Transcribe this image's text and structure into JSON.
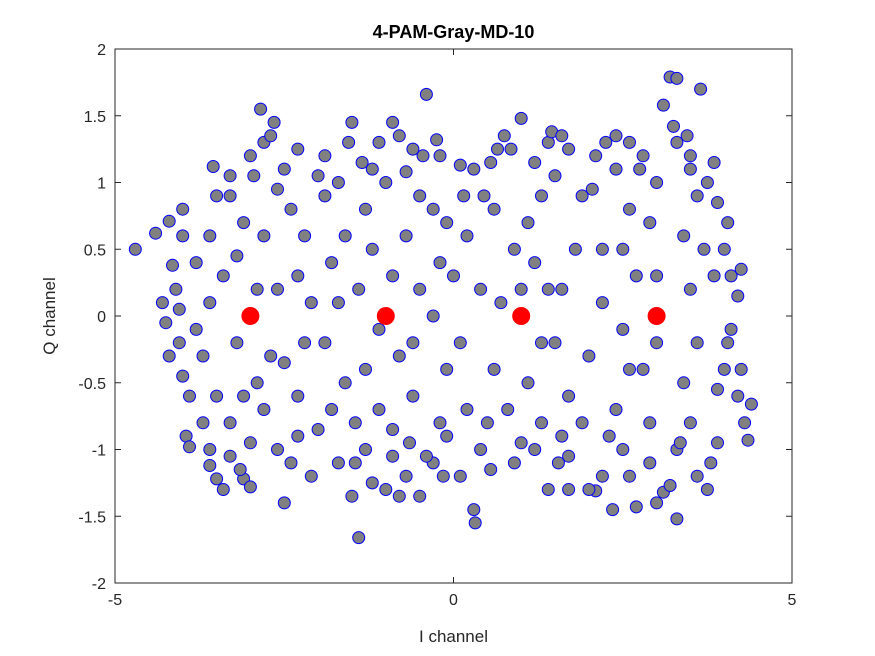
{
  "chart_data": {
    "type": "scatter",
    "title": "4-PAM-Gray-MD-10",
    "xlabel": "I channel",
    "ylabel": "Q channel",
    "xlim": [
      -5,
      5
    ],
    "ylim": [
      -2,
      2
    ],
    "xticks": [
      -5,
      0,
      5
    ],
    "xtick_labels": [
      "-5",
      "0",
      "5"
    ],
    "yticks": [
      2,
      1.5,
      1,
      0.5,
      0,
      -0.5,
      -1,
      -1.5,
      -2
    ],
    "ytick_labels": [
      "2",
      "1.5",
      "1",
      "0.5",
      "0",
      "-0.5",
      "-1",
      "-1.5",
      "-2"
    ],
    "grid": false,
    "series": [
      {
        "role": "received-samples",
        "marker": "circle",
        "face_color": "#808080",
        "edge_color": "#0000ff",
        "points": [
          [
            -4.7,
            0.5
          ],
          [
            -4.4,
            0.62
          ],
          [
            -4.2,
            0.71
          ],
          [
            -4.15,
            0.38
          ],
          [
            -4.1,
            0.2
          ],
          [
            -4.3,
            0.1
          ],
          [
            -4.25,
            -0.05
          ],
          [
            -4.05,
            -0.2
          ],
          [
            -4.2,
            -0.3
          ],
          [
            -4.0,
            -0.45
          ],
          [
            -3.9,
            -0.6
          ],
          [
            -3.95,
            -0.9
          ],
          [
            -3.9,
            -0.98
          ],
          [
            -3.6,
            -1.12
          ],
          [
            -3.5,
            -1.22
          ],
          [
            -3.1,
            -1.22
          ],
          [
            -3.0,
            -1.28
          ],
          [
            -2.5,
            -1.4
          ],
          [
            -3.0,
            -0.95
          ],
          [
            -2.9,
            -0.5
          ],
          [
            -3.5,
            -0.6
          ],
          [
            -3.7,
            -0.3
          ],
          [
            -3.4,
            0.3
          ],
          [
            -3.2,
            0.45
          ],
          [
            -3.6,
            0.6
          ],
          [
            -3.1,
            0.7
          ],
          [
            -3.5,
            0.9
          ],
          [
            -3.55,
            1.12
          ],
          [
            -3.3,
            1.05
          ],
          [
            -3.0,
            1.2
          ],
          [
            -2.8,
            1.3
          ],
          [
            -2.85,
            1.55
          ],
          [
            -2.65,
            1.45
          ],
          [
            -2.7,
            1.35
          ],
          [
            -2.5,
            1.1
          ],
          [
            -2.6,
            0.95
          ],
          [
            -2.4,
            0.8
          ],
          [
            -2.2,
            0.6
          ],
          [
            -2.3,
            0.3
          ],
          [
            -2.1,
            0.1
          ],
          [
            -2.2,
            -0.2
          ],
          [
            -2.5,
            -0.35
          ],
          [
            -2.3,
            -0.6
          ],
          [
            -2.0,
            -0.85
          ],
          [
            -2.6,
            -1.0
          ],
          [
            -2.3,
            -0.9
          ],
          [
            -1.8,
            -0.7
          ],
          [
            -1.9,
            -0.2
          ],
          [
            -1.8,
            0.4
          ],
          [
            -1.9,
            0.9
          ],
          [
            -1.5,
            1.45
          ],
          [
            -1.35,
            1.15
          ],
          [
            -1.55,
            1.3
          ],
          [
            -1.2,
            1.1
          ],
          [
            -1.0,
            1.0
          ],
          [
            -1.3,
            0.8
          ],
          [
            -1.2,
            0.5
          ],
          [
            -1.4,
            0.2
          ],
          [
            -1.1,
            -0.1
          ],
          [
            -1.3,
            -0.4
          ],
          [
            -1.1,
            -0.7
          ],
          [
            -1.3,
            -1.0
          ],
          [
            -1.2,
            -1.25
          ],
          [
            -1.5,
            -1.35
          ],
          [
            -1.45,
            -1.1
          ],
          [
            -0.9,
            -1.05
          ],
          [
            -0.7,
            -1.2
          ],
          [
            -0.5,
            -1.35
          ],
          [
            -0.8,
            -1.35
          ],
          [
            -0.65,
            -0.95
          ],
          [
            -0.6,
            -0.6
          ],
          [
            -0.8,
            -0.3
          ],
          [
            -0.9,
            0.3
          ],
          [
            -0.7,
            0.6
          ],
          [
            -0.5,
            0.9
          ],
          [
            -0.45,
            1.2
          ],
          [
            -0.8,
            1.35
          ],
          [
            -0.9,
            1.45
          ],
          [
            -0.6,
            1.25
          ],
          [
            -0.25,
            1.32
          ],
          [
            -0.4,
            1.66
          ],
          [
            -0.2,
            1.2
          ],
          [
            -0.3,
            0.8
          ],
          [
            -0.2,
            0.4
          ],
          [
            -0.3,
            0.0
          ],
          [
            -0.1,
            -0.4
          ],
          [
            -0.2,
            -0.8
          ],
          [
            -0.3,
            -1.1
          ],
          [
            -0.1,
            -0.9
          ],
          [
            0.1,
            -1.2
          ],
          [
            0.3,
            -1.45
          ],
          [
            0.32,
            -1.55
          ],
          [
            -1.4,
            -1.66
          ],
          [
            -1.0,
            -1.3
          ],
          [
            0.4,
            0.2
          ],
          [
            0.2,
            0.6
          ],
          [
            0.3,
            1.1
          ],
          [
            0.1,
            1.13
          ],
          [
            0.45,
            0.9
          ],
          [
            0.65,
            1.25
          ],
          [
            0.75,
            1.35
          ],
          [
            0.85,
            1.25
          ],
          [
            1.0,
            1.48
          ],
          [
            1.2,
            1.15
          ],
          [
            1.4,
            1.3
          ],
          [
            1.45,
            1.38
          ],
          [
            1.6,
            1.35
          ],
          [
            1.7,
            1.25
          ],
          [
            1.3,
            0.9
          ],
          [
            1.1,
            0.7
          ],
          [
            1.2,
            0.4
          ],
          [
            1.4,
            0.2
          ],
          [
            1.3,
            -0.2
          ],
          [
            1.1,
            -0.5
          ],
          [
            1.3,
            -0.8
          ],
          [
            1.2,
            -1.0
          ],
          [
            1.4,
            -1.3
          ],
          [
            1.7,
            -1.05
          ],
          [
            1.6,
            -0.9
          ],
          [
            1.7,
            -0.6
          ],
          [
            1.5,
            -0.2
          ],
          [
            1.6,
            0.2
          ],
          [
            1.8,
            0.5
          ],
          [
            1.9,
            0.9
          ],
          [
            2.1,
            1.2
          ],
          [
            2.25,
            1.3
          ],
          [
            2.4,
            1.1
          ],
          [
            2.6,
            0.8
          ],
          [
            2.5,
            0.5
          ],
          [
            2.7,
            0.3
          ],
          [
            2.5,
            -0.1
          ],
          [
            2.6,
            -0.4
          ],
          [
            2.4,
            -0.7
          ],
          [
            2.5,
            -1.0
          ],
          [
            2.2,
            -1.2
          ],
          [
            2.1,
            -1.31
          ],
          [
            2.0,
            -1.3
          ],
          [
            2.35,
            -1.45
          ],
          [
            2.7,
            -1.43
          ],
          [
            3.0,
            -1.4
          ],
          [
            3.1,
            -1.32
          ],
          [
            3.3,
            -1.52
          ],
          [
            3.2,
            -1.27
          ],
          [
            3.3,
            -1.0
          ],
          [
            3.5,
            -0.8
          ],
          [
            3.4,
            -0.5
          ],
          [
            3.6,
            -0.2
          ],
          [
            3.5,
            0.2
          ],
          [
            3.7,
            0.5
          ],
          [
            3.6,
            0.9
          ],
          [
            3.5,
            1.1
          ],
          [
            3.3,
            1.3
          ],
          [
            3.25,
            1.42
          ],
          [
            3.1,
            1.58
          ],
          [
            3.2,
            1.79
          ],
          [
            3.3,
            1.78
          ],
          [
            3.65,
            1.7
          ],
          [
            3.5,
            1.2
          ],
          [
            3.75,
            1.0
          ],
          [
            3.9,
            0.85
          ],
          [
            4.0,
            0.5
          ],
          [
            4.1,
            0.3
          ],
          [
            4.2,
            0.15
          ],
          [
            4.1,
            -0.1
          ],
          [
            4.0,
            -0.4
          ],
          [
            4.2,
            -0.6
          ],
          [
            4.3,
            -0.8
          ],
          [
            4.4,
            -0.66
          ],
          [
            4.35,
            -0.93
          ],
          [
            3.8,
            -1.1
          ],
          [
            3.6,
            -1.2
          ],
          [
            3.9,
            -0.95
          ],
          [
            2.9,
            -0.8
          ],
          [
            2.8,
            -0.4
          ],
          [
            3.0,
            0.3
          ],
          [
            2.9,
            0.7
          ],
          [
            3.0,
            1.0
          ],
          [
            2.8,
            1.2
          ],
          [
            2.6,
            1.3
          ],
          [
            2.05,
            0.95
          ],
          [
            2.2,
            0.1
          ],
          [
            2.0,
            -0.3
          ],
          [
            1.9,
            -0.8
          ],
          [
            2.3,
            -0.9
          ],
          [
            1.0,
            -0.95
          ],
          [
            0.8,
            -0.7
          ],
          [
            0.6,
            -0.4
          ],
          [
            0.7,
            0.1
          ],
          [
            0.9,
            0.5
          ],
          [
            0.6,
            0.8
          ],
          [
            0.5,
            -0.8
          ],
          [
            0.4,
            -1.0
          ],
          [
            0.2,
            -0.7
          ],
          [
            0.1,
            -0.2
          ],
          [
            0.0,
            0.3
          ],
          [
            -0.1,
            0.7
          ],
          [
            0.15,
            0.9
          ],
          [
            -0.5,
            0.2
          ],
          [
            -0.6,
            -0.2
          ],
          [
            -1.6,
            -0.5
          ],
          [
            -1.7,
            0.1
          ],
          [
            -1.6,
            0.6
          ],
          [
            -1.7,
            1.0
          ],
          [
            -1.9,
            1.2
          ],
          [
            -2.0,
            1.05
          ],
          [
            -2.8,
            0.6
          ],
          [
            -2.6,
            0.2
          ],
          [
            -2.7,
            -0.3
          ],
          [
            -2.8,
            -0.7
          ],
          [
            -3.3,
            -0.8
          ],
          [
            -3.2,
            -0.2
          ],
          [
            -3.6,
            0.1
          ],
          [
            -3.8,
            0.4
          ],
          [
            -4.0,
            0.8
          ],
          [
            -4.05,
            0.05
          ],
          [
            -3.7,
            -0.8
          ],
          [
            -3.3,
            -1.05
          ],
          [
            -2.1,
            -1.2
          ],
          [
            -1.7,
            -1.1
          ],
          [
            -0.4,
            -1.05
          ],
          [
            0.9,
            -1.1
          ],
          [
            1.7,
            -1.3
          ],
          [
            2.9,
            -1.1
          ],
          [
            3.75,
            -1.3
          ],
          [
            4.05,
            -0.2
          ],
          [
            3.85,
            0.3
          ],
          [
            3.4,
            0.6
          ],
          [
            3.0,
            -0.2
          ],
          [
            2.2,
            0.5
          ],
          [
            1.0,
            0.2
          ],
          [
            -3.4,
            -1.3
          ],
          [
            -3.6,
            -1.0
          ],
          [
            -3.1,
            -0.6
          ],
          [
            -2.9,
            0.2
          ],
          [
            -3.3,
            0.9
          ],
          [
            -2.95,
            1.05
          ],
          [
            -2.3,
            1.25
          ],
          [
            -1.1,
            1.3
          ],
          [
            -0.7,
            1.08
          ],
          [
            0.55,
            1.15
          ],
          [
            1.5,
            1.05
          ],
          [
            2.4,
            1.35
          ],
          [
            2.75,
            1.1
          ],
          [
            3.45,
            1.35
          ],
          [
            3.85,
            1.15
          ],
          [
            4.05,
            0.7
          ],
          [
            4.25,
            0.35
          ],
          [
            4.25,
            -0.4
          ],
          [
            3.9,
            -0.55
          ],
          [
            3.35,
            -0.95
          ],
          [
            2.6,
            -1.2
          ],
          [
            1.55,
            -1.1
          ],
          [
            0.55,
            -1.15
          ],
          [
            -0.15,
            -1.2
          ],
          [
            -0.9,
            -0.85
          ],
          [
            -1.45,
            -0.8
          ],
          [
            -2.4,
            -1.1
          ],
          [
            -3.15,
            -1.15
          ],
          [
            -3.8,
            -0.1
          ],
          [
            -4.0,
            0.6
          ]
        ]
      },
      {
        "role": "constellation-points",
        "marker": "circle",
        "face_color": "#ff0000",
        "edge_color": "#ff0000",
        "points": [
          [
            -3,
            0
          ],
          [
            -1,
            0
          ],
          [
            1,
            0
          ],
          [
            3,
            0
          ]
        ]
      }
    ]
  }
}
